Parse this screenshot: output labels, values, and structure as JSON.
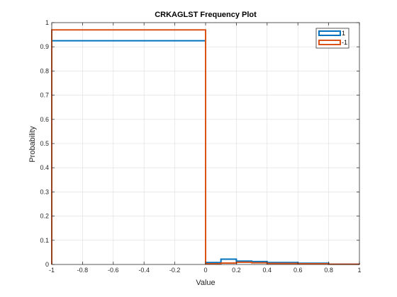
{
  "chart_data": {
    "type": "stairs",
    "title": "CRKAGLST Frequency Plot",
    "xlabel": "Value",
    "ylabel": "Probability",
    "xlim": [
      -1,
      1
    ],
    "ylim": [
      0,
      1
    ],
    "xticks": [
      -1,
      -0.8,
      -0.6,
      -0.4,
      -0.2,
      0,
      0.2,
      0.4,
      0.6,
      0.8,
      1
    ],
    "xtick_labels": [
      "-1",
      "-0.8",
      "-0.6",
      "-0.4",
      "-0.2",
      "0",
      "0.2",
      "0.4",
      "0.6",
      "0.8",
      "1"
    ],
    "yticks": [
      0,
      0.1,
      0.2,
      0.3,
      0.4,
      0.5,
      0.6,
      0.7,
      0.8,
      0.9,
      1
    ],
    "ytick_labels": [
      "0",
      "0.1",
      "0.2",
      "0.3",
      "0.4",
      "0.5",
      "0.6",
      "0.7",
      "0.8",
      "0.9",
      "1"
    ],
    "grid": true,
    "legend_position": "top-right",
    "series": [
      {
        "name": "1",
        "color": "#0072BD",
        "edges": [
          -1,
          0,
          0.1,
          0.2,
          0.3,
          0.4,
          0.6,
          0.8,
          1
        ],
        "values": [
          0.925,
          0.008,
          0.022,
          0.014,
          0.012,
          0.008,
          0.005,
          0.001
        ]
      },
      {
        "name": "-1",
        "color": "#D95319",
        "edges": [
          -1,
          0,
          0.1,
          0.2,
          0.3,
          0.4,
          0.6,
          0.8,
          1
        ],
        "values": [
          0.97,
          0.003,
          0.006,
          0.009,
          0.007,
          0.004,
          0.003,
          0.001
        ]
      }
    ]
  }
}
